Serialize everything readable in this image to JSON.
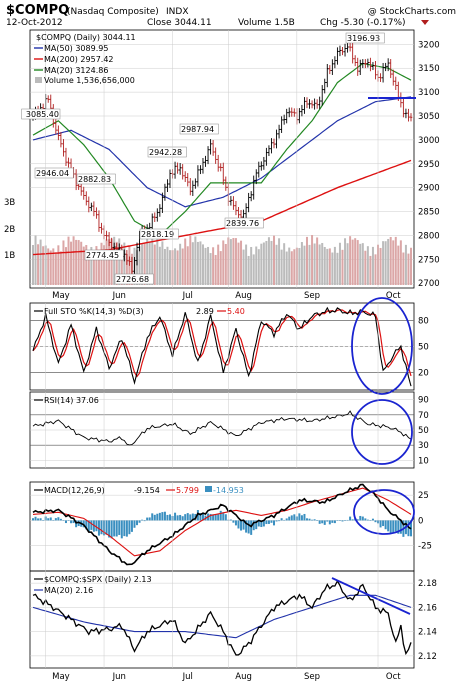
{
  "header": {
    "symbol": "$COMPQ",
    "name": "(Nasdaq Composite)",
    "exchange": "INDX",
    "watermark": "@ StockCharts.com",
    "date": "12-Oct-2012",
    "close_label": "Close 3044.11",
    "volume_label": "Volume 1.5B",
    "chg_label": "Chg -5.30 (-0.17%)",
    "chg_icon": "triangle-down-icon"
  },
  "colors": {
    "price": "#000000",
    "ma50": "#2233aa",
    "ma200": "#dd1111",
    "ma20": "#228822",
    "volume_up": "#bbbbbb",
    "volume_down": "#dba6a6",
    "circle": "#1a24d0",
    "macd_hist": "#3a8fc0",
    "grid": "#cccccc"
  },
  "chart_data": [
    {
      "type": "ohlc",
      "title": "$COMPQ (Daily) 3044.11",
      "legend": [
        {
          "label": "MA(50) 3089.95",
          "color": "#2233aa"
        },
        {
          "label": "MA(200) 2957.42",
          "color": "#dd1111"
        },
        {
          "label": "MA(20) 3124.86",
          "color": "#228822"
        },
        {
          "label": "Volume 1,536,656,000",
          "color": "#bbbbbb"
        }
      ],
      "yticks": [
        2700,
        2750,
        2800,
        2850,
        2900,
        2950,
        3000,
        3050,
        3100,
        3150,
        3200
      ],
      "ylim": [
        2690,
        3230
      ],
      "volume_ticks": [
        "3B",
        "2B",
        "1B"
      ],
      "annotations": [
        "3085.40",
        "2946.04",
        "2882.83",
        "2942.28",
        "2987.94",
        "3196.93",
        "2774.45",
        "2818.19",
        "2839.76",
        "2726.68"
      ],
      "xticks": [
        "May",
        "Jun",
        "Jul",
        "Aug",
        "Sep",
        "Oct"
      ],
      "anchor_closes": [
        [
          0,
          3050
        ],
        [
          6,
          3085
        ],
        [
          9,
          3020
        ],
        [
          14,
          2946
        ],
        [
          20,
          2880
        ],
        [
          24,
          2850
        ],
        [
          28,
          2800
        ],
        [
          32,
          2774
        ],
        [
          36,
          2760
        ],
        [
          39,
          2727
        ],
        [
          42,
          2800
        ],
        [
          46,
          2820
        ],
        [
          50,
          2860
        ],
        [
          54,
          2930
        ],
        [
          58,
          2942
        ],
        [
          62,
          2895
        ],
        [
          66,
          2940
        ],
        [
          70,
          2988
        ],
        [
          74,
          2935
        ],
        [
          77,
          2880
        ],
        [
          80,
          2850
        ],
        [
          83,
          2840
        ],
        [
          88,
          2930
        ],
        [
          92,
          2970
        ],
        [
          96,
          3010
        ],
        [
          100,
          3060
        ],
        [
          104,
          3050
        ],
        [
          108,
          3080
        ],
        [
          112,
          3070
        ],
        [
          116,
          3140
        ],
        [
          120,
          3180
        ],
        [
          124,
          3197
        ],
        [
          128,
          3150
        ],
        [
          132,
          3165
        ],
        [
          136,
          3130
        ],
        [
          140,
          3160
        ],
        [
          144,
          3090
        ],
        [
          147,
          3050
        ],
        [
          149,
          3044
        ]
      ],
      "ma50_anchors": [
        [
          0,
          3000
        ],
        [
          15,
          3020
        ],
        [
          30,
          2980
        ],
        [
          45,
          2900
        ],
        [
          60,
          2860
        ],
        [
          75,
          2880
        ],
        [
          90,
          2920
        ],
        [
          105,
          2980
        ],
        [
          120,
          3040
        ],
        [
          135,
          3080
        ],
        [
          149,
          3090
        ]
      ],
      "ma200_anchors": [
        [
          0,
          2760
        ],
        [
          30,
          2770
        ],
        [
          60,
          2800
        ],
        [
          90,
          2830
        ],
        [
          120,
          2900
        ],
        [
          149,
          2957
        ]
      ],
      "ma20_anchors": [
        [
          0,
          3010
        ],
        [
          10,
          3040
        ],
        [
          20,
          2990
        ],
        [
          30,
          2920
        ],
        [
          40,
          2830
        ],
        [
          50,
          2800
        ],
        [
          60,
          2850
        ],
        [
          70,
          2910
        ],
        [
          80,
          2910
        ],
        [
          90,
          2910
        ],
        [
          100,
          2980
        ],
        [
          110,
          3040
        ],
        [
          120,
          3120
        ],
        [
          130,
          3160
        ],
        [
          140,
          3150
        ],
        [
          149,
          3125
        ]
      ]
    },
    {
      "type": "line",
      "title": "Full STO %K(14,3) %D(3)",
      "value_k": "2.89",
      "value_d": "5.40",
      "yticks": [
        20,
        50,
        80
      ],
      "ylim": [
        0,
        100
      ],
      "anchors": [
        [
          0,
          45
        ],
        [
          5,
          85
        ],
        [
          10,
          30
        ],
        [
          15,
          75
        ],
        [
          20,
          20
        ],
        [
          25,
          70
        ],
        [
          30,
          25
        ],
        [
          35,
          60
        ],
        [
          40,
          10
        ],
        [
          45,
          60
        ],
        [
          50,
          85
        ],
        [
          55,
          40
        ],
        [
          60,
          88
        ],
        [
          65,
          30
        ],
        [
          70,
          85
        ],
        [
          75,
          20
        ],
        [
          80,
          70
        ],
        [
          85,
          15
        ],
        [
          90,
          80
        ],
        [
          95,
          65
        ],
        [
          100,
          88
        ],
        [
          105,
          70
        ],
        [
          110,
          85
        ],
        [
          115,
          90
        ],
        [
          120,
          92
        ],
        [
          125,
          88
        ],
        [
          130,
          90
        ],
        [
          135,
          85
        ],
        [
          138,
          20
        ],
        [
          142,
          40
        ],
        [
          145,
          50
        ],
        [
          149,
          3
        ]
      ]
    },
    {
      "type": "line",
      "title": "RSI(14) 37.06",
      "yticks": [
        10,
        30,
        50,
        70,
        90
      ],
      "ylim": [
        0,
        100
      ],
      "anchors": [
        [
          0,
          55
        ],
        [
          10,
          62
        ],
        [
          20,
          40
        ],
        [
          30,
          35
        ],
        [
          35,
          40
        ],
        [
          38,
          28
        ],
        [
          45,
          52
        ],
        [
          55,
          58
        ],
        [
          62,
          45
        ],
        [
          70,
          60
        ],
        [
          80,
          42
        ],
        [
          90,
          60
        ],
        [
          100,
          65
        ],
        [
          110,
          62
        ],
        [
          120,
          68
        ],
        [
          125,
          72
        ],
        [
          132,
          58
        ],
        [
          138,
          55
        ],
        [
          142,
          52
        ],
        [
          146,
          45
        ],
        [
          149,
          37
        ]
      ]
    },
    {
      "type": "line",
      "title": "MACD(12,26,9)",
      "value_macd": "-9.154",
      "value_signal": "5.799",
      "value_hist": "-14.953",
      "yticks": [
        -25,
        0,
        25
      ],
      "ylim": [
        -50,
        38
      ],
      "macd_anchors": [
        [
          0,
          8
        ],
        [
          10,
          10
        ],
        [
          20,
          -5
        ],
        [
          30,
          -30
        ],
        [
          38,
          -45
        ],
        [
          45,
          -30
        ],
        [
          55,
          -15
        ],
        [
          65,
          5
        ],
        [
          75,
          15
        ],
        [
          85,
          -5
        ],
        [
          95,
          5
        ],
        [
          105,
          20
        ],
        [
          115,
          18
        ],
        [
          125,
          30
        ],
        [
          130,
          35
        ],
        [
          135,
          25
        ],
        [
          140,
          10
        ],
        [
          145,
          0
        ],
        [
          149,
          -9
        ]
      ],
      "signal_anchors": [
        [
          0,
          6
        ],
        [
          10,
          8
        ],
        [
          20,
          2
        ],
        [
          30,
          -15
        ],
        [
          40,
          -35
        ],
        [
          50,
          -30
        ],
        [
          60,
          -10
        ],
        [
          70,
          5
        ],
        [
          80,
          10
        ],
        [
          90,
          5
        ],
        [
          100,
          10
        ],
        [
          110,
          18
        ],
        [
          120,
          25
        ],
        [
          130,
          32
        ],
        [
          140,
          20
        ],
        [
          149,
          6
        ]
      ]
    },
    {
      "type": "line",
      "title": "$COMPQ:$SPX (Daily) 2.13",
      "legend": [
        {
          "label": "MA(20) 2.16",
          "color": "#2233aa"
        }
      ],
      "yticks": [
        2.12,
        2.14,
        2.16,
        2.18
      ],
      "ylim": [
        2.11,
        2.19
      ],
      "anchors": [
        [
          0,
          2.17
        ],
        [
          8,
          2.16
        ],
        [
          15,
          2.15
        ],
        [
          22,
          2.14
        ],
        [
          30,
          2.142
        ],
        [
          35,
          2.145
        ],
        [
          40,
          2.125
        ],
        [
          45,
          2.14
        ],
        [
          55,
          2.15
        ],
        [
          60,
          2.13
        ],
        [
          70,
          2.155
        ],
        [
          75,
          2.14
        ],
        [
          80,
          2.12
        ],
        [
          85,
          2.13
        ],
        [
          95,
          2.16
        ],
        [
          105,
          2.17
        ],
        [
          110,
          2.16
        ],
        [
          115,
          2.175
        ],
        [
          120,
          2.18
        ],
        [
          125,
          2.165
        ],
        [
          130,
          2.178
        ],
        [
          135,
          2.16
        ],
        [
          140,
          2.155
        ],
        [
          143,
          2.13
        ],
        [
          145,
          2.145
        ],
        [
          147,
          2.12
        ],
        [
          149,
          2.13
        ]
      ],
      "ma_anchors": [
        [
          0,
          2.16
        ],
        [
          20,
          2.148
        ],
        [
          40,
          2.14
        ],
        [
          60,
          2.14
        ],
        [
          80,
          2.135
        ],
        [
          95,
          2.15
        ],
        [
          110,
          2.16
        ],
        [
          125,
          2.17
        ],
        [
          135,
          2.17
        ],
        [
          149,
          2.16
        ]
      ]
    }
  ]
}
